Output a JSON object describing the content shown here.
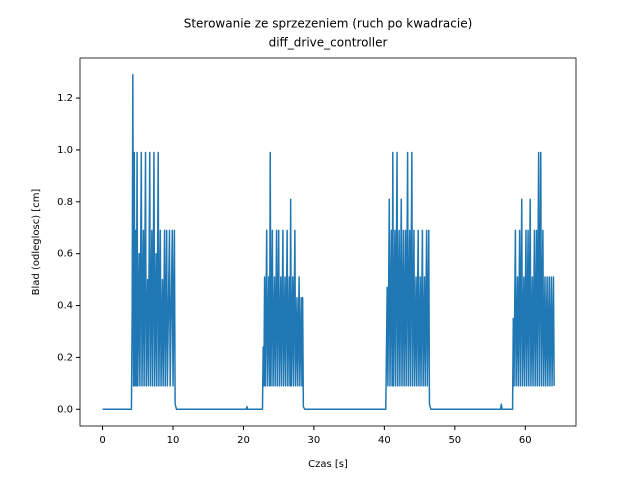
{
  "chart_data": {
    "type": "line",
    "title": "Sterowanie ze sprzezeniem (ruch po kwadracie)",
    "subtitle": "diff_drive_controller",
    "x_label": "Czas [s]",
    "y_label": "Blad (odleglosc) [cm]",
    "xlim": [
      -3.2,
      67.2
    ],
    "ylim": [
      -0.0645,
      1.3545
    ],
    "xticks": [
      0,
      10,
      20,
      30,
      40,
      50,
      60
    ],
    "yticks": [
      {
        "value": 0,
        "label": "0.0"
      },
      0.2,
      0.4,
      0.6,
      0.8,
      {
        "value": 1,
        "label": "1.0"
      },
      1.2
    ],
    "grid": false,
    "series": [
      {
        "color": "#1f77b4",
        "x": [
          0,
          4.1,
          4.2,
          4.3,
          4.4,
          4.5,
          4.6,
          4.7,
          4.8,
          4.9,
          5.0,
          5.2,
          5.3,
          5.5,
          5.6,
          5.8,
          5.9,
          6.1,
          6.2,
          6.4,
          6.5,
          6.7,
          6.8,
          7.0,
          7.1,
          7.3,
          7.4,
          7.6,
          7.7,
          7.9,
          8.0,
          8.2,
          8.3,
          8.5,
          8.6,
          8.8,
          8.9,
          9.1,
          9.2,
          9.5,
          9.6,
          9.9,
          10.0,
          10.2,
          10.3,
          10.5,
          20.4,
          20.5,
          20.6,
          22.7,
          22.8,
          22.9,
          23.0,
          23.1,
          23.3,
          23.4,
          23.6,
          23.7,
          23.8,
          23.9,
          24.1,
          24.2,
          24.4,
          24.5,
          24.7,
          24.8,
          25.0,
          25.1,
          25.3,
          25.4,
          25.6,
          25.7,
          25.9,
          26.0,
          26.2,
          26.3,
          26.5,
          26.6,
          26.7,
          26.8,
          27.0,
          27.1,
          27.3,
          27.4,
          27.6,
          27.7,
          27.9,
          28.0,
          28.2,
          28.3,
          28.4,
          28.5,
          28.7,
          40.2,
          40.4,
          40.5,
          40.7,
          40.8,
          41.0,
          41.1,
          41.2,
          41.3,
          41.5,
          41.6,
          41.8,
          41.9,
          42.1,
          42.2,
          42.4,
          42.5,
          42.7,
          42.8,
          43.0,
          43.1,
          43.3,
          43.4,
          43.6,
          43.7,
          43.9,
          44.0,
          44.2,
          44.3,
          44.5,
          44.6,
          44.8,
          44.9,
          45.1,
          45.2,
          45.4,
          45.5,
          45.7,
          45.8,
          46.0,
          46.1,
          46.3,
          46.4,
          46.6,
          56.5,
          56.6,
          56.7,
          58.2,
          58.3,
          58.4,
          58.6,
          58.7,
          58.9,
          59.0,
          59.2,
          59.3,
          59.5,
          59.6,
          59.8,
          59.9,
          60.1,
          60.2,
          60.4,
          60.5,
          60.7,
          60.8,
          61.0,
          61.1,
          61.3,
          61.4,
          61.6,
          61.7,
          61.9,
          62.0,
          62.2,
          62.3,
          62.5,
          62.6,
          62.8,
          62.9,
          63.1,
          63.2,
          63.4,
          63.5,
          63.7,
          63.8,
          64.0,
          64.1
        ],
        "values": [
          0,
          0,
          0.35,
          1.29,
          0.09,
          0.99,
          0.09,
          0.69,
          0.09,
          0.99,
          0.09,
          0.6,
          0.09,
          0.99,
          0.09,
          0.69,
          0.09,
          0.99,
          0.09,
          0.5,
          0.09,
          0.99,
          0.09,
          0.69,
          0.09,
          0.99,
          0.09,
          0.6,
          0.09,
          0.99,
          0.09,
          0.69,
          0.09,
          0.5,
          0.09,
          0.69,
          0.09,
          0.69,
          0.09,
          0.69,
          0.09,
          0.69,
          0.09,
          0.69,
          0.02,
          0,
          0,
          0.01,
          0,
          0,
          0.24,
          0.09,
          0.51,
          0.09,
          0.69,
          0.09,
          0.51,
          0.09,
          0.99,
          0.09,
          0.69,
          0.09,
          0.51,
          0.09,
          0.69,
          0.09,
          0.69,
          0.09,
          0.51,
          0.09,
          0.69,
          0.09,
          0.51,
          0.09,
          0.69,
          0.09,
          0.51,
          0.09,
          0.81,
          0.09,
          0.51,
          0.09,
          0.69,
          0.09,
          0.43,
          0.09,
          0.51,
          0.09,
          0.43,
          0.09,
          0.43,
          0.01,
          0,
          0,
          0.47,
          0.09,
          0.81,
          0.09,
          0.69,
          0.09,
          0.99,
          0.09,
          0.69,
          0.09,
          0.99,
          0.09,
          0.69,
          0.09,
          0.81,
          0.09,
          0.69,
          0.09,
          0.69,
          0.09,
          0.99,
          0.09,
          0.69,
          0.09,
          0.99,
          0.09,
          0.69,
          0.09,
          0.51,
          0.09,
          0.69,
          0.09,
          0.51,
          0.09,
          0.69,
          0.09,
          0.51,
          0.09,
          0.69,
          0.09,
          0.69,
          0.02,
          0,
          0,
          0.02,
          0,
          0,
          0.35,
          0.09,
          0.69,
          0.09,
          0.51,
          0.09,
          0.69,
          0.09,
          0.81,
          0.09,
          0.51,
          0.09,
          0.69,
          0.09,
          0.69,
          0.09,
          0.81,
          0.09,
          0.51,
          0.09,
          0.69,
          0.09,
          0.69,
          0.09,
          0.99,
          0.09,
          0.99,
          0.09,
          0.69,
          0.09,
          0.51,
          0.09,
          0.51,
          0.09,
          0.51,
          0.09,
          0.51,
          0.09,
          0.51,
          0.09
        ]
      }
    ]
  }
}
